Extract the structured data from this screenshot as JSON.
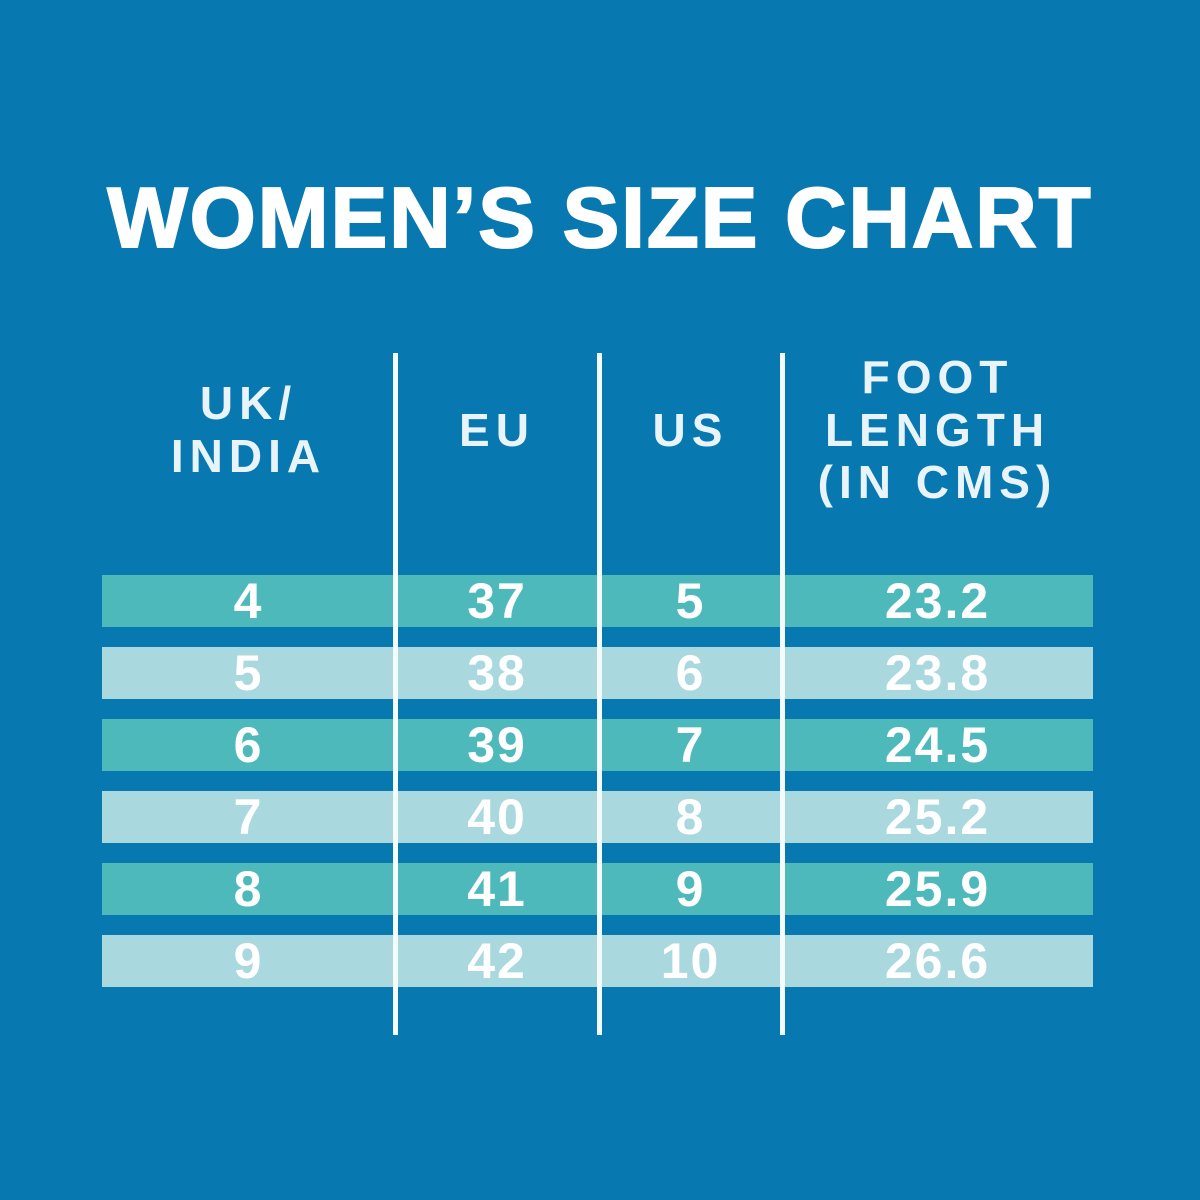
{
  "page": {
    "background_color": "#0878b0",
    "row_color_dark": "#4eb9bb",
    "row_color_light": "#a9d9de",
    "divider_color": "#f4fbfc",
    "text_color": "#ffffff"
  },
  "title": "WOMEN’S SIZE CHART",
  "table": {
    "columns": [
      {
        "label": "UK/\nINDIA"
      },
      {
        "label": "EU"
      },
      {
        "label": "US"
      },
      {
        "label": "FOOT\nLENGTH\n(IN CMS)"
      }
    ]
  },
  "chart_data": {
    "type": "table",
    "title": "WOMEN’S SIZE CHART",
    "columns": [
      "UK/INDIA",
      "EU",
      "US",
      "FOOT LENGTH (IN CMS)"
    ],
    "rows": [
      [
        "4",
        "37",
        "5",
        "23.2"
      ],
      [
        "5",
        "38",
        "6",
        "23.8"
      ],
      [
        "6",
        "39",
        "7",
        "24.5"
      ],
      [
        "7",
        "40",
        "8",
        "25.2"
      ],
      [
        "8",
        "41",
        "9",
        "25.9"
      ],
      [
        "9",
        "42",
        "10",
        "26.6"
      ]
    ]
  }
}
